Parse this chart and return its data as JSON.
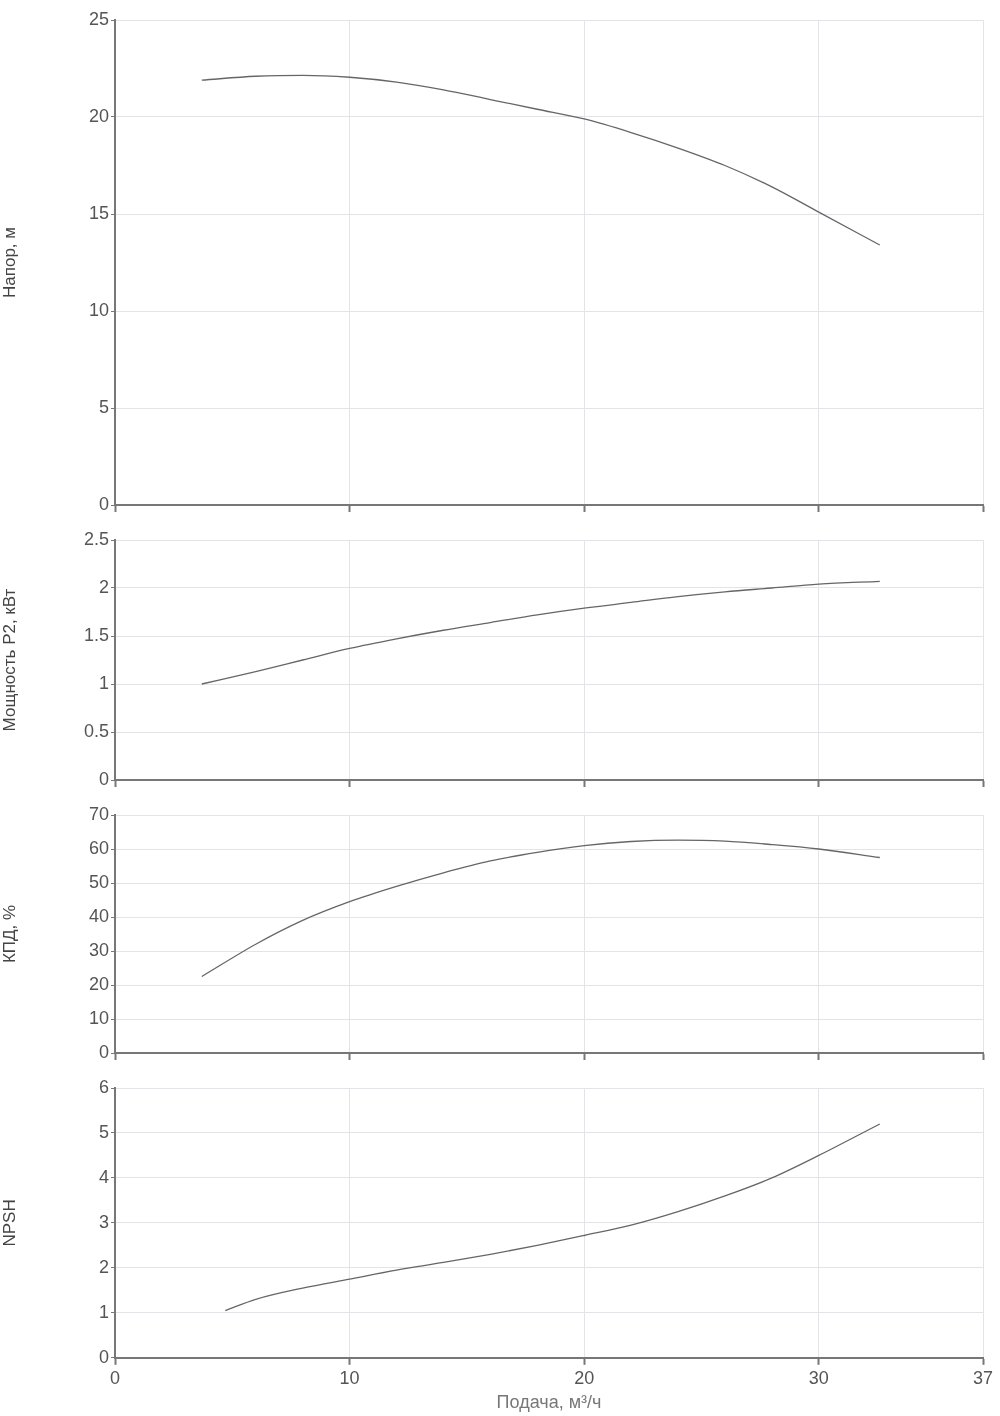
{
  "chart_data": [
    {
      "type": "line",
      "ylabel": "Напор, м",
      "xlim": [
        0,
        37
      ],
      "xticks": [
        0,
        10,
        20,
        30,
        37
      ],
      "ylim": [
        0,
        25
      ],
      "yticks": [
        0,
        5,
        10,
        15,
        20,
        25
      ],
      "grid": true,
      "tick_labels": "y",
      "marker": "none",
      "series": [
        {
          "color": "#666666",
          "x": [
            3.7,
            6,
            8,
            10,
            12,
            14,
            16,
            18,
            20,
            22,
            24,
            26,
            28,
            30,
            32.6
          ],
          "values": [
            21.9,
            22.1,
            22.15,
            22.05,
            21.8,
            21.4,
            20.9,
            20.4,
            19.9,
            19.2,
            18.4,
            17.5,
            16.4,
            15.1,
            13.4
          ]
        }
      ]
    },
    {
      "type": "line",
      "ylabel": "Мощность P2, кВт",
      "xlim": [
        0,
        37
      ],
      "xticks": [
        0,
        10,
        20,
        30,
        37
      ],
      "ylim": [
        0,
        2.5
      ],
      "yticks": [
        0,
        0.5,
        1,
        1.5,
        2,
        2.5
      ],
      "grid": true,
      "tick_labels": "y",
      "marker": "none",
      "series": [
        {
          "color": "#666666",
          "x": [
            3.7,
            6,
            8,
            10,
            12,
            14,
            16,
            18,
            20,
            22,
            24,
            26,
            28,
            30,
            32.6
          ],
          "values": [
            1.0,
            1.13,
            1.25,
            1.37,
            1.47,
            1.56,
            1.64,
            1.72,
            1.79,
            1.85,
            1.91,
            1.96,
            2.0,
            2.04,
            2.07
          ]
        }
      ]
    },
    {
      "type": "line",
      "ylabel": "КПД, %",
      "xlim": [
        0,
        37
      ],
      "xticks": [
        0,
        10,
        20,
        30,
        37
      ],
      "ylim": [
        0,
        70
      ],
      "yticks": [
        0,
        10,
        20,
        30,
        40,
        50,
        60,
        70
      ],
      "grid": true,
      "tick_labels": "y",
      "marker": "none",
      "series": [
        {
          "color": "#666666",
          "x": [
            3.7,
            6,
            8,
            10,
            12,
            14,
            16,
            18,
            20,
            22,
            24,
            26,
            28,
            30,
            32.6
          ],
          "values": [
            22.5,
            32,
            39,
            44.5,
            49,
            53,
            56.5,
            59,
            61,
            62.2,
            62.6,
            62.3,
            61.3,
            60,
            57.5
          ]
        }
      ]
    },
    {
      "type": "line",
      "xlabel": "Подача, м³/ч",
      "ylabel": "NPSH",
      "xlim": [
        0,
        37
      ],
      "xticks": [
        0,
        10,
        20,
        30,
        37
      ],
      "ylim": [
        0,
        6
      ],
      "yticks": [
        0,
        1,
        2,
        3,
        4,
        5,
        6
      ],
      "grid": true,
      "marker": "none",
      "series": [
        {
          "color": "#666666",
          "x": [
            4.7,
            6,
            8,
            10,
            12,
            14,
            16,
            18,
            20,
            22,
            24,
            26,
            28,
            30,
            32.6
          ],
          "values": [
            1.05,
            1.3,
            1.55,
            1.75,
            1.95,
            2.12,
            2.3,
            2.5,
            2.72,
            2.95,
            3.25,
            3.6,
            4.0,
            4.5,
            5.2
          ]
        }
      ]
    }
  ]
}
